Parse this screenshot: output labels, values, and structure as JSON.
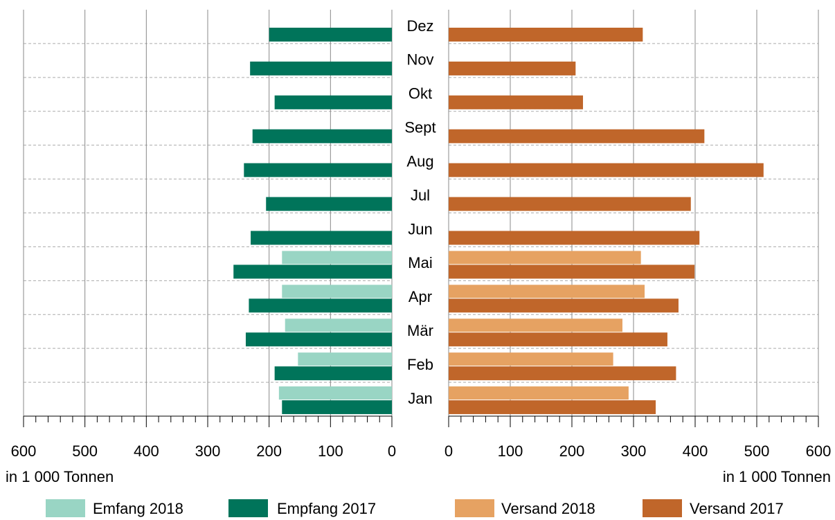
{
  "chart_data": [
    {
      "type": "bar",
      "orientation": "horizontal",
      "side": "left",
      "categories": [
        "Jan",
        "Feb",
        "Mär",
        "Apr",
        "Mai",
        "Jun",
        "Jul",
        "Aug",
        "Sept",
        "Okt",
        "Nov",
        "Dez"
      ],
      "series": [
        {
          "name": "Emfang 2018",
          "color": "#99d5c4",
          "values": [
            184,
            153,
            174,
            179,
            179,
            null,
            null,
            null,
            null,
            null,
            null,
            null
          ]
        },
        {
          "name": "Empfang 2017",
          "color": "#00745a",
          "values": [
            179,
            191,
            238,
            233,
            258,
            230,
            205,
            241,
            227,
            191,
            231,
            200
          ]
        }
      ],
      "xlim": [
        600,
        0
      ],
      "xticks": [
        600,
        500,
        400,
        300,
        200,
        100,
        0
      ],
      "xlabel": "in 1 000 Tonnen",
      "grid": true
    },
    {
      "type": "bar",
      "orientation": "horizontal",
      "side": "right",
      "series": [
        {
          "name": "Versand 2018",
          "color": "#e6a262",
          "values": [
            292,
            267,
            282,
            318,
            312,
            null,
            null,
            null,
            null,
            null,
            null,
            null
          ]
        },
        {
          "name": "Versand 2017",
          "color": "#c0662a",
          "values": [
            336,
            369,
            355,
            373,
            399,
            407,
            393,
            511,
            415,
            218,
            206,
            315
          ]
        }
      ],
      "xlim": [
        0,
        600
      ],
      "xticks": [
        0,
        100,
        200,
        300,
        400,
        500,
        600
      ],
      "xlabel": "in 1 000 Tonnen",
      "grid": true
    }
  ]
}
